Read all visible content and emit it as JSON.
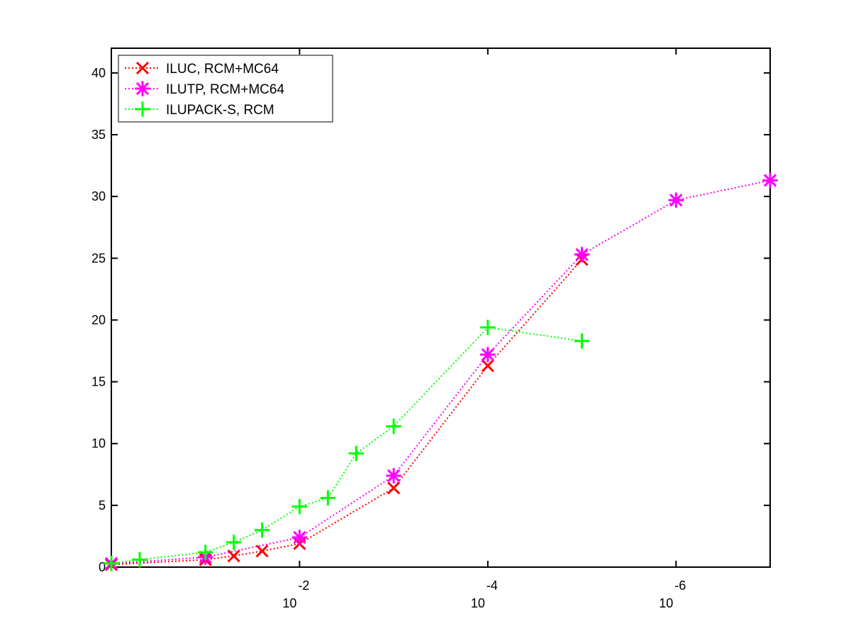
{
  "chart_data": {
    "type": "line",
    "title": "",
    "xlabel": "",
    "ylabel": "",
    "x_scale": "log-reversed",
    "xlim": [
      1,
      1e-07
    ],
    "ylim": [
      0,
      42
    ],
    "grid": false,
    "legend_position": "top-left",
    "x_ticks": [
      {
        "value": 0.01,
        "base": "10",
        "exponent": "-2"
      },
      {
        "value": 0.0001,
        "base": "10",
        "exponent": "-4"
      },
      {
        "value": 1e-06,
        "base": "10",
        "exponent": "-6"
      }
    ],
    "y_ticks": [
      {
        "value": 0,
        "label": "0"
      },
      {
        "value": 5,
        "label": "5"
      },
      {
        "value": 10,
        "label": "10"
      },
      {
        "value": 15,
        "label": "15"
      },
      {
        "value": 20,
        "label": "20"
      },
      {
        "value": 25,
        "label": "25"
      },
      {
        "value": 30,
        "label": "30"
      },
      {
        "value": 35,
        "label": "35"
      },
      {
        "value": 40,
        "label": "40"
      }
    ],
    "series": [
      {
        "name": "ILUC, RCM+MC64",
        "color": "#ff0000",
        "marker": "x",
        "points": [
          {
            "x": 1,
            "y": 0.2
          },
          {
            "x": 0.1,
            "y": 0.6
          },
          {
            "x": 0.05,
            "y": 0.9
          },
          {
            "x": 0.025,
            "y": 1.3
          },
          {
            "x": 0.01,
            "y": 1.9
          },
          {
            "x": 0.001,
            "y": 6.4
          },
          {
            "x": 0.0001,
            "y": 16.3
          },
          {
            "x": 1e-05,
            "y": 24.9
          }
        ]
      },
      {
        "name": "ILUTP, RCM+MC64",
        "color": "#ff00ff",
        "marker": "asterisk",
        "points": [
          {
            "x": 1,
            "y": 0.3
          },
          {
            "x": 0.1,
            "y": 0.8
          },
          {
            "x": 0.01,
            "y": 2.4
          },
          {
            "x": 0.001,
            "y": 7.4
          },
          {
            "x": 0.0001,
            "y": 17.2
          },
          {
            "x": 1e-05,
            "y": 25.3
          },
          {
            "x": 1e-06,
            "y": 29.7
          },
          {
            "x": 1e-07,
            "y": 31.3
          }
        ]
      },
      {
        "name": "ILUPACK-S, RCM",
        "color": "#00ff00",
        "marker": "plus",
        "points": [
          {
            "x": 1,
            "y": 0.3
          },
          {
            "x": 0.5,
            "y": 0.6
          },
          {
            "x": 0.1,
            "y": 1.2
          },
          {
            "x": 0.05,
            "y": 2.0
          },
          {
            "x": 0.025,
            "y": 3.0
          },
          {
            "x": 0.01,
            "y": 4.9
          },
          {
            "x": 0.005,
            "y": 5.6
          },
          {
            "x": 0.0025,
            "y": 9.2
          },
          {
            "x": 0.001,
            "y": 11.4
          },
          {
            "x": 0.0001,
            "y": 19.4
          },
          {
            "x": 1e-05,
            "y": 18.3
          }
        ]
      }
    ]
  }
}
